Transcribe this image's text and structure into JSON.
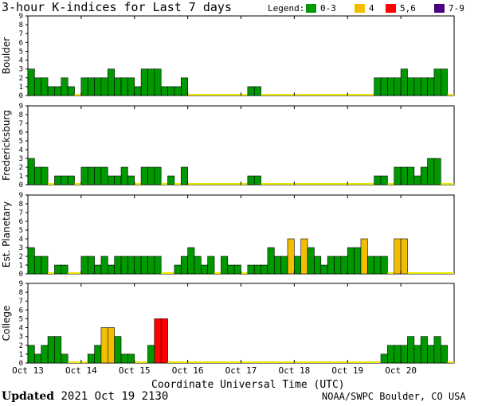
{
  "title": "3-hour K-indices for Last 7 days",
  "legend": {
    "label": "Legend:",
    "items": [
      {
        "label": "0-3",
        "color": "#009900"
      },
      {
        "label": "4",
        "color": "#f4be00"
      },
      {
        "label": "5,6",
        "color": "#ff0000"
      },
      {
        "label": "7-9",
        "color": "#4b0082"
      }
    ]
  },
  "footer": {
    "updated_label": "Updated",
    "updated_value": "2021 Oct 19 2130",
    "source": "NOAA/SWPC Boulder, CO USA"
  },
  "colors": {
    "quiet": "#009900",
    "active": "#f4be00",
    "storm": "#ff0000",
    "severe": "#4b0082",
    "baseline": "#e8e800"
  },
  "chart_data": {
    "type": "bar",
    "xlabel": "Coordinate Universal Time (UTC)",
    "x_tick_labels": [
      "Oct 13",
      "Oct 14",
      "Oct 15",
      "Oct 16",
      "Oct 17",
      "Oct 18",
      "Oct 19",
      "Oct 20"
    ],
    "y_ticks": [
      "0",
      "1",
      "2",
      "3",
      "4",
      "5",
      "6",
      "7",
      "8",
      "9"
    ],
    "ylim": [
      0,
      9
    ],
    "grid": false,
    "intervals_per_day": 8,
    "series": [
      {
        "name": "Boulder",
        "values": [
          3,
          2,
          2,
          1,
          1,
          2,
          1,
          0,
          2,
          2,
          2,
          2,
          3,
          2,
          2,
          2,
          1,
          3,
          3,
          3,
          1,
          1,
          1,
          2,
          0,
          0,
          0,
          0,
          0,
          0,
          0,
          0,
          0,
          1,
          1,
          0,
          0,
          0,
          0,
          0,
          0,
          0,
          0,
          0,
          0,
          0,
          0,
          0,
          0,
          0,
          0,
          0,
          2,
          2,
          2,
          2,
          3,
          2,
          2,
          2,
          2,
          3,
          3,
          0
        ]
      },
      {
        "name": "Fredericksburg",
        "values": [
          3,
          2,
          2,
          0,
          1,
          1,
          1,
          0,
          2,
          2,
          2,
          2,
          1,
          1,
          2,
          1,
          0,
          2,
          2,
          2,
          0,
          1,
          0,
          2,
          0,
          0,
          0,
          0,
          0,
          0,
          0,
          0,
          0,
          1,
          1,
          0,
          0,
          0,
          0,
          0,
          0,
          0,
          0,
          0,
          0,
          0,
          0,
          0,
          0,
          0,
          0,
          0,
          1,
          1,
          0,
          2,
          2,
          2,
          1,
          2,
          3,
          3,
          0,
          0
        ]
      },
      {
        "name": "Est. Planetary",
        "values": [
          3,
          2,
          2,
          0,
          1,
          1,
          0,
          0,
          2,
          2,
          1,
          2,
          1,
          2,
          2,
          2,
          2,
          2,
          2,
          2,
          0,
          0,
          1,
          2,
          3,
          2,
          1,
          2,
          0,
          2,
          1,
          1,
          0,
          1,
          1,
          1,
          3,
          2,
          2,
          4,
          2,
          4,
          3,
          2,
          1,
          2,
          2,
          2,
          3,
          3,
          4,
          2,
          2,
          2,
          0,
          4,
          4,
          0,
          0,
          0,
          0,
          0,
          0,
          0
        ]
      },
      {
        "name": "College",
        "values": [
          2,
          1,
          2,
          3,
          3,
          1,
          0,
          0,
          0,
          1,
          2,
          4,
          4,
          3,
          1,
          1,
          0,
          0,
          2,
          5,
          5,
          0,
          0,
          0,
          0,
          0,
          0,
          0,
          0,
          0,
          0,
          0,
          0,
          0,
          0,
          0,
          0,
          0,
          0,
          0,
          0,
          0,
          0,
          0,
          0,
          0,
          0,
          0,
          0,
          0,
          0,
          0,
          0,
          1,
          2,
          2,
          2,
          3,
          2,
          3,
          2,
          3,
          2,
          0
        ]
      }
    ]
  }
}
